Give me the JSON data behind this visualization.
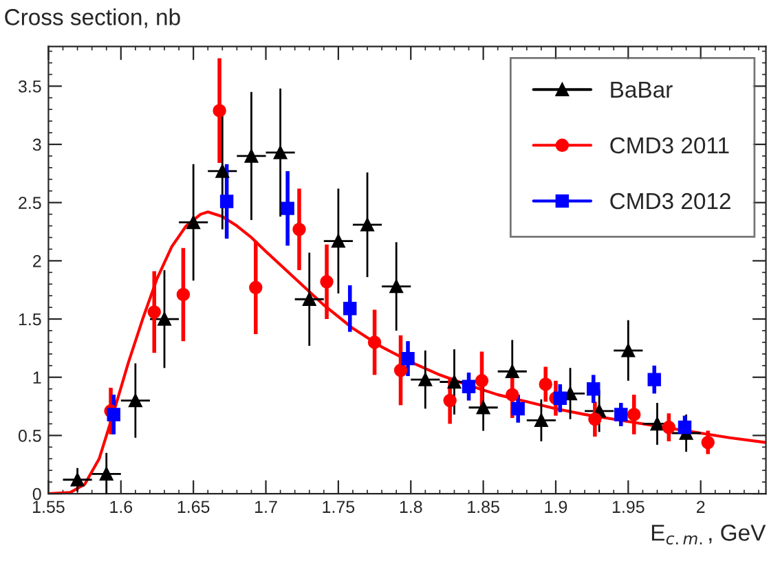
{
  "chart_data": {
    "type": "scatter",
    "ylabel": "Cross section, nb",
    "xlabel": "E$_{c.m.}$, GeV",
    "xlim": [
      1.55,
      2.045
    ],
    "xticks": [
      1.55,
      1.6,
      1.65,
      1.7,
      1.75,
      1.8,
      1.85,
      1.9,
      1.95,
      2
    ],
    "ylim": [
      0,
      3.84
    ],
    "yticks": [
      0,
      0.5,
      1,
      1.5,
      2,
      2.5,
      3,
      3.5
    ],
    "grid": false,
    "legend": "top right",
    "series": [
      {
        "name": "BaBar",
        "color": "#000000",
        "marker": "triangle",
        "x": [
          1.57,
          1.59,
          1.61,
          1.63,
          1.65,
          1.67,
          1.69,
          1.71,
          1.73,
          1.75,
          1.77,
          1.79,
          1.81,
          1.83,
          1.85,
          1.87,
          1.89,
          1.91,
          1.93,
          1.95,
          1.97,
          1.99
        ],
        "values": [
          0.12,
          0.17,
          0.8,
          1.5,
          2.33,
          2.77,
          2.9,
          2.93,
          1.67,
          2.17,
          2.31,
          1.78,
          0.98,
          0.96,
          0.74,
          1.05,
          0.63,
          0.86,
          0.71,
          1.23,
          0.6,
          0.52
        ],
        "errors": [
          0.1,
          0.18,
          0.32,
          0.42,
          0.5,
          0.5,
          0.55,
          0.55,
          0.4,
          0.45,
          0.45,
          0.38,
          0.25,
          0.28,
          0.2,
          0.27,
          0.18,
          0.22,
          0.18,
          0.26,
          0.18,
          0.16
        ],
        "xerrors": [
          0.01,
          0.01,
          0.01,
          0.01,
          0.01,
          0.01,
          0.01,
          0.01,
          0.01,
          0.01,
          0.01,
          0.01,
          0.01,
          0.01,
          0.01,
          0.01,
          0.01,
          0.01,
          0.01,
          0.01,
          0.01,
          0.01
        ]
      },
      {
        "name": "CMD3 2011",
        "color": "#ff0000",
        "marker": "circle",
        "x": [
          1.593,
          1.623,
          1.643,
          1.668,
          1.693,
          1.723,
          1.742,
          1.775,
          1.793,
          1.827,
          1.849,
          1.87,
          1.893,
          1.9,
          1.927,
          1.954,
          1.978,
          2.005
        ],
        "values": [
          0.71,
          1.56,
          1.71,
          3.29,
          1.77,
          2.27,
          1.82,
          1.3,
          1.06,
          0.8,
          0.97,
          0.85,
          0.94,
          0.82,
          0.64,
          0.68,
          0.57,
          0.44
        ],
        "errors": [
          0.2,
          0.35,
          0.4,
          0.45,
          0.4,
          0.35,
          0.32,
          0.28,
          0.3,
          0.2,
          0.25,
          0.2,
          0.15,
          0.15,
          0.15,
          0.17,
          0.12,
          0.1
        ]
      },
      {
        "name": "CMD3 2012",
        "color": "#0000ff",
        "marker": "square",
        "x": [
          1.595,
          1.673,
          1.715,
          1.758,
          1.798,
          1.84,
          1.874,
          1.903,
          1.926,
          1.945,
          1.968,
          1.989
        ],
        "values": [
          0.68,
          2.51,
          2.45,
          1.59,
          1.16,
          0.92,
          0.73,
          0.82,
          0.9,
          0.68,
          0.98,
          0.57
        ],
        "errors": [
          0.17,
          0.32,
          0.32,
          0.2,
          0.15,
          0.12,
          0.12,
          0.12,
          0.12,
          0.1,
          0.12,
          0.1
        ]
      },
      {
        "type": "line",
        "color": "#ff0000",
        "x": [
          1.55,
          1.565,
          1.575,
          1.585,
          1.595,
          1.605,
          1.615,
          1.625,
          1.635,
          1.645,
          1.655,
          1.66,
          1.67,
          1.68,
          1.69,
          1.7,
          1.72,
          1.74,
          1.76,
          1.78,
          1.8,
          1.82,
          1.84,
          1.86,
          1.88,
          1.9,
          1.92,
          1.94,
          1.96,
          1.98,
          2.0,
          2.02,
          2.045
        ],
        "values": [
          0,
          0.01,
          0.08,
          0.3,
          0.7,
          1.12,
          1.5,
          1.85,
          2.12,
          2.3,
          2.4,
          2.42,
          2.38,
          2.3,
          2.2,
          2.08,
          1.85,
          1.62,
          1.42,
          1.26,
          1.13,
          1.02,
          0.93,
          0.85,
          0.79,
          0.73,
          0.68,
          0.64,
          0.6,
          0.56,
          0.52,
          0.48,
          0.44
        ]
      }
    ]
  }
}
